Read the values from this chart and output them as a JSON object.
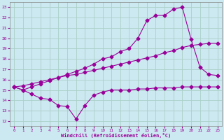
{
  "bg_color": "#cce8f0",
  "grid_color": "#aacfc8",
  "line_color": "#990099",
  "xlabel": "Windchill (Refroidissement éolien,°C)",
  "xlim": [
    -0.5,
    23.5
  ],
  "ylim": [
    11.5,
    23.5
  ],
  "yticks": [
    12,
    13,
    14,
    15,
    16,
    17,
    18,
    19,
    20,
    21,
    22,
    23
  ],
  "xticks": [
    0,
    1,
    2,
    3,
    4,
    5,
    6,
    7,
    8,
    9,
    10,
    11,
    12,
    13,
    14,
    15,
    16,
    17,
    18,
    19,
    20,
    21,
    22,
    23
  ],
  "line1_x": [
    0,
    1,
    2,
    3,
    4,
    5,
    6,
    7,
    8,
    9,
    10,
    11,
    12,
    13,
    14,
    15,
    16,
    17,
    18,
    19,
    20,
    21,
    22,
    23
  ],
  "line1_y": [
    15.3,
    15.0,
    14.6,
    14.2,
    14.1,
    13.5,
    13.4,
    12.2,
    13.5,
    14.5,
    14.8,
    15.0,
    15.0,
    15.0,
    15.1,
    15.1,
    15.2,
    15.2,
    15.2,
    15.3,
    15.3,
    15.3,
    15.3,
    15.3
  ],
  "line2_x": [
    0,
    1,
    2,
    3,
    4,
    5,
    6,
    7,
    8,
    9,
    10,
    11,
    12,
    13,
    14,
    15,
    16,
    17,
    18,
    19,
    20,
    21,
    22,
    23
  ],
  "line2_y": [
    15.3,
    15.4,
    15.6,
    15.8,
    16.0,
    16.2,
    16.4,
    16.5,
    16.7,
    16.9,
    17.1,
    17.3,
    17.5,
    17.7,
    17.9,
    18.1,
    18.3,
    18.6,
    18.8,
    19.1,
    19.3,
    19.4,
    19.5,
    19.5
  ],
  "line3_x": [
    0,
    1,
    2,
    3,
    4,
    5,
    6,
    7,
    8,
    9,
    10,
    11,
    12,
    13,
    14,
    15,
    16,
    17,
    18,
    19,
    20,
    21,
    22,
    23
  ],
  "line3_y": [
    15.3,
    15.0,
    15.3,
    15.6,
    15.9,
    16.2,
    16.5,
    16.8,
    17.1,
    17.5,
    18.0,
    18.2,
    18.7,
    19.0,
    20.0,
    21.7,
    22.2,
    22.2,
    22.8,
    23.0,
    19.9,
    17.2,
    16.5,
    16.4
  ],
  "markersize": 2.5
}
